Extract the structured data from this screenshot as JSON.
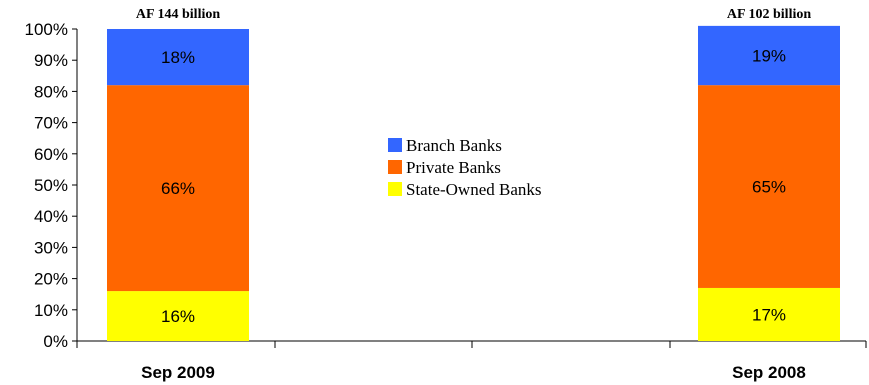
{
  "chart_data": {
    "type": "bar",
    "stacked": true,
    "percent_axis": true,
    "categories": [
      "Sep 2009",
      "Sep 2008"
    ],
    "totals": [
      "AF 144 billion",
      "AF 102 billion"
    ],
    "series": [
      {
        "name": "State-Owned Banks",
        "values": [
          16,
          17
        ],
        "labels": [
          "16%",
          "17%"
        ],
        "color": "#FFFF00"
      },
      {
        "name": "Private Banks",
        "values": [
          66,
          65
        ],
        "labels": [
          "66%",
          "65%"
        ],
        "color": "#FF6600"
      },
      {
        "name": "Branch Banks",
        "values": [
          18,
          19
        ],
        "labels": [
          "18%",
          "19%"
        ],
        "color": "#3366FF"
      }
    ],
    "legend_order": [
      "Branch Banks",
      "Private Banks",
      "State-Owned Banks"
    ],
    "legend_position": "center",
    "ylim": [
      0,
      100
    ],
    "yticks": [
      0,
      10,
      20,
      30,
      40,
      50,
      60,
      70,
      80,
      90,
      100
    ],
    "ytick_labels": [
      "0%",
      "10%",
      "20%",
      "30%",
      "40%",
      "50%",
      "60%",
      "70%",
      "80%",
      "90%",
      "100%"
    ],
    "grid": false
  }
}
